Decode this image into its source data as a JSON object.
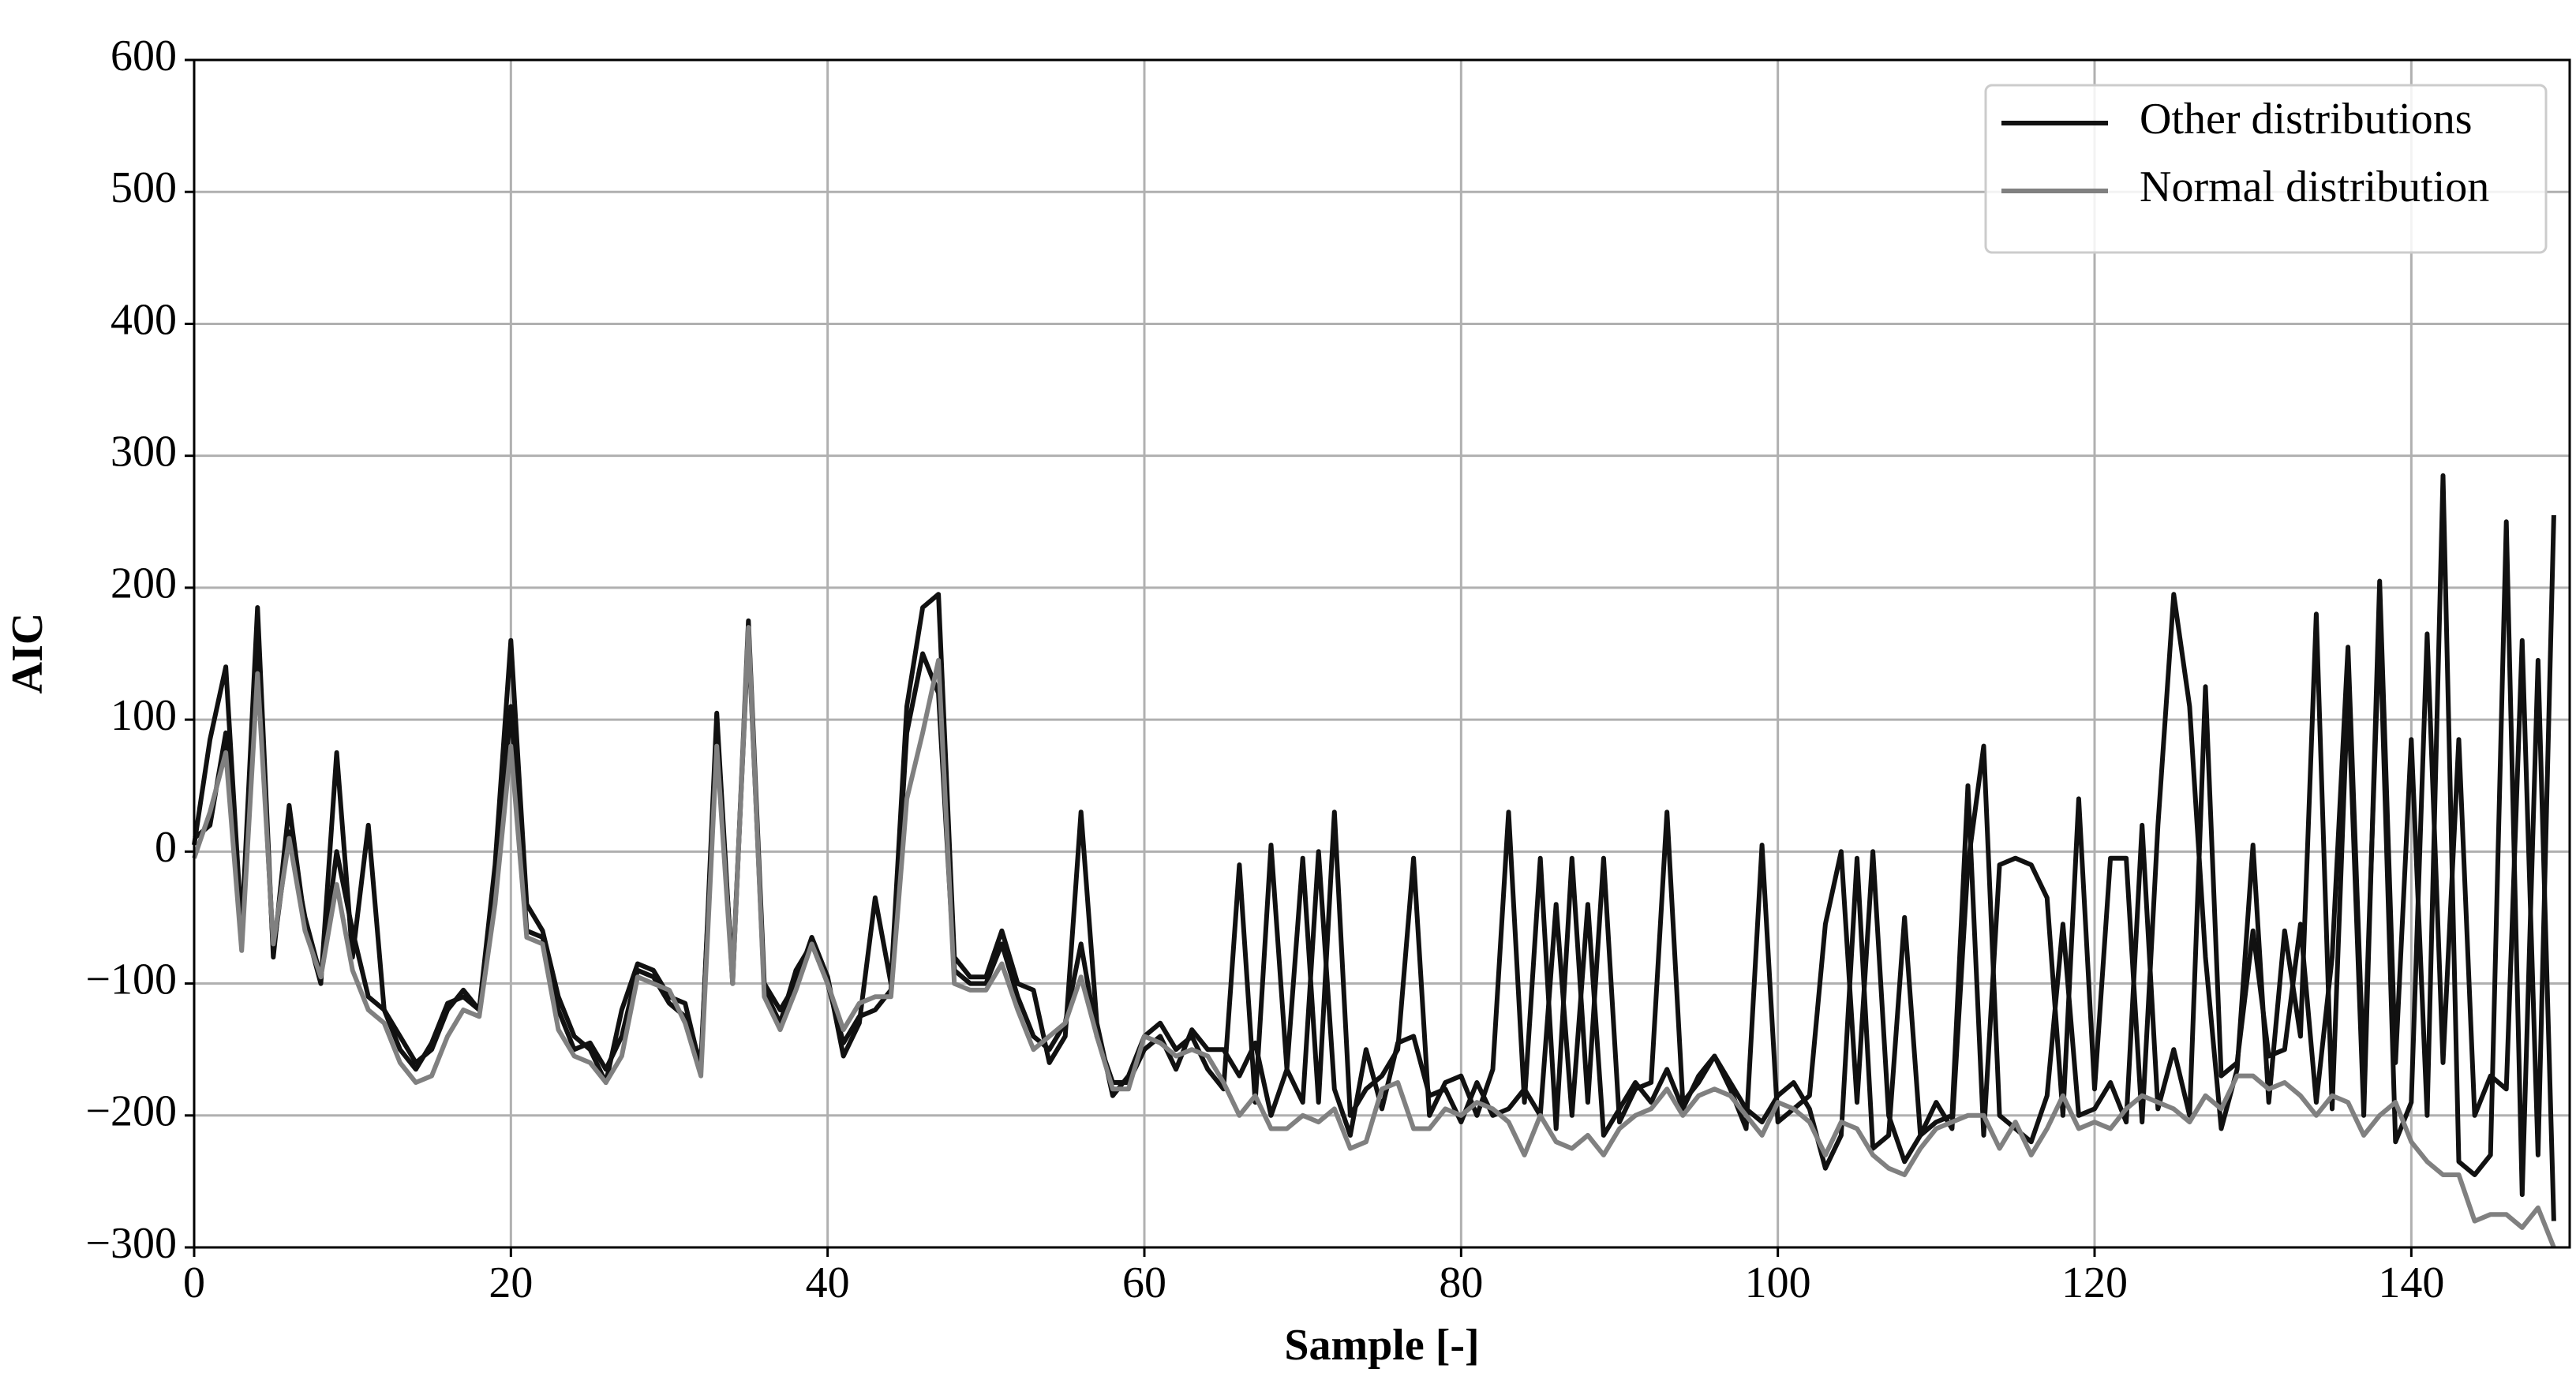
{
  "chart_data": {
    "type": "line",
    "xlabel": "Sample [-]",
    "ylabel": "AIC",
    "x": [
      0,
      1,
      2,
      3,
      4,
      5,
      6,
      7,
      8,
      9,
      10,
      11,
      12,
      13,
      14,
      15,
      16,
      17,
      18,
      19,
      20,
      21,
      22,
      23,
      24,
      25,
      26,
      27,
      28,
      29,
      30,
      31,
      32,
      33,
      34,
      35,
      36,
      37,
      38,
      39,
      40,
      41,
      42,
      43,
      44,
      45,
      46,
      47,
      48,
      49,
      50,
      51,
      52,
      53,
      54,
      55,
      56,
      57,
      58,
      59,
      60,
      61,
      62,
      63,
      64,
      65,
      66,
      67,
      68,
      69,
      70,
      71,
      72,
      73,
      74,
      75,
      76,
      77,
      78,
      79,
      80,
      81,
      82,
      83,
      84,
      85,
      86,
      87,
      88,
      89,
      90,
      91,
      92,
      93,
      94,
      95,
      96,
      97,
      98,
      99,
      100,
      101,
      102,
      103,
      104,
      105,
      106,
      107,
      108,
      109,
      110,
      111,
      112,
      113,
      114,
      115,
      116,
      117,
      118,
      119,
      120,
      121,
      122,
      123,
      124,
      125,
      126,
      127,
      128,
      129,
      130,
      131,
      132,
      133,
      134,
      135,
      136,
      137,
      138,
      139,
      140,
      141,
      142,
      143,
      144,
      145,
      146,
      147,
      148,
      149
    ],
    "series": [
      {
        "name": "Other distributions",
        "color": "#111111",
        "values": [
          5,
          85,
          140,
          -60,
          185,
          -80,
          35,
          -55,
          -100,
          75,
          -80,
          20,
          -120,
          -150,
          -165,
          -145,
          -115,
          -110,
          -120,
          -10,
          160,
          -40,
          -60,
          -110,
          -140,
          -150,
          -175,
          -120,
          -85,
          -90,
          -110,
          -115,
          -165,
          105,
          -100,
          175,
          -100,
          -120,
          -100,
          -65,
          -95,
          -155,
          -130,
          -35,
          -100,
          110,
          185,
          195,
          -80,
          -95,
          -95,
          -60,
          -100,
          -105,
          -160,
          -140,
          30,
          -130,
          -185,
          -170,
          -140,
          -130,
          -150,
          -140,
          -165,
          -180,
          -10,
          -190,
          5,
          -165,
          -5,
          -190,
          30,
          -200,
          -180,
          -170,
          -150,
          -5,
          -200,
          -175,
          -170,
          -200,
          -165,
          30,
          -190,
          -5,
          -210,
          -5,
          -190,
          -5,
          -205,
          -180,
          -175,
          30,
          -190,
          -175,
          -155,
          -180,
          -210,
          5,
          -205,
          -195,
          -185,
          -55,
          0,
          -190,
          0,
          -200,
          -235,
          -215,
          -205,
          -200,
          50,
          -215,
          -10,
          -5,
          -10,
          -35,
          -200,
          40,
          -180,
          -5,
          -5,
          -205,
          20,
          195,
          110,
          -80,
          -210,
          -165,
          5,
          -190,
          -60,
          -140,
          180,
          -195,
          125,
          -200,
          205,
          -160,
          85,
          -200,
          285,
          -235,
          -245,
          -230,
          250,
          -260,
          145,
          -280
        ]
      },
      {
        "name": "Other distributions",
        "color": "#111111",
        "values": [
          10,
          20,
          90,
          -70,
          150,
          -75,
          15,
          -50,
          -95,
          0,
          -60,
          -110,
          -120,
          -140,
          -160,
          -150,
          -120,
          -105,
          -120,
          -30,
          110,
          -60,
          -65,
          -120,
          -150,
          -145,
          -165,
          -140,
          -90,
          -95,
          -115,
          -125,
          -160,
          90,
          -95,
          165,
          -105,
          -130,
          -90,
          -70,
          -100,
          -145,
          -125,
          -120,
          -105,
          90,
          150,
          120,
          -90,
          -100,
          -100,
          -70,
          -110,
          -140,
          -150,
          -130,
          -70,
          -140,
          -175,
          -175,
          -150,
          -140,
          -165,
          -135,
          -150,
          -150,
          -170,
          -145,
          -200,
          -165,
          -190,
          0,
          -180,
          -215,
          -150,
          -195,
          -145,
          -140,
          -185,
          -180,
          -205,
          -175,
          -200,
          -195,
          -180,
          -200,
          -40,
          -200,
          -40,
          -215,
          -195,
          -175,
          -190,
          -165,
          -195,
          -170,
          -155,
          -175,
          -195,
          -205,
          -185,
          -175,
          -195,
          -240,
          -215,
          -5,
          -225,
          -215,
          -50,
          -215,
          -190,
          -210,
          -10,
          80,
          -200,
          -210,
          -220,
          -185,
          -55,
          -200,
          -195,
          -175,
          -205,
          20,
          -195,
          -150,
          -200,
          125,
          -170,
          -160,
          -60,
          -155,
          -150,
          -55,
          -190,
          -80,
          155,
          -170,
          175,
          -220,
          -190,
          165,
          -160,
          85,
          -200,
          -170,
          -180,
          160,
          -230,
          255
        ]
      },
      {
        "name": "Normal distribution",
        "color": "#808080",
        "values": [
          -5,
          30,
          75,
          -75,
          135,
          -70,
          10,
          -60,
          -95,
          -25,
          -90,
          -120,
          -130,
          -160,
          -175,
          -170,
          -140,
          -120,
          -125,
          -40,
          80,
          -65,
          -70,
          -135,
          -155,
          -160,
          -175,
          -155,
          -95,
          -100,
          -105,
          -130,
          -170,
          80,
          -100,
          170,
          -110,
          -135,
          -105,
          -70,
          -100,
          -135,
          -115,
          -110,
          -110,
          40,
          90,
          145,
          -100,
          -105,
          -105,
          -85,
          -120,
          -150,
          -140,
          -130,
          -95,
          -140,
          -180,
          -180,
          -140,
          -145,
          -155,
          -150,
          -155,
          -175,
          -200,
          -185,
          -210,
          -210,
          -200,
          -205,
          -195,
          -225,
          -220,
          -180,
          -175,
          -210,
          -210,
          -195,
          -200,
          -190,
          -195,
          -205,
          -230,
          -200,
          -220,
          -225,
          -215,
          -230,
          -210,
          -200,
          -195,
          -180,
          -200,
          -185,
          -180,
          -185,
          -200,
          -215,
          -190,
          -195,
          -205,
          -230,
          -205,
          -210,
          -230,
          -240,
          -245,
          -225,
          -210,
          -205,
          -200,
          -200,
          -225,
          -205,
          -230,
          -210,
          -185,
          -210,
          -205,
          -210,
          -195,
          -185,
          -190,
          -195,
          -205,
          -185,
          -195,
          -170,
          -170,
          -180,
          -175,
          -185,
          -200,
          -185,
          -190,
          -215,
          -200,
          -190,
          -220,
          -235,
          -245,
          -245,
          -280,
          -275,
          -275,
          -285,
          -270,
          -300
        ]
      }
    ],
    "xlim": [
      0,
      150
    ],
    "xticks": [
      0,
      20,
      40,
      60,
      80,
      100,
      120,
      140
    ],
    "ylim": [
      -300,
      600
    ],
    "yticks": [
      {
        "value": -300,
        "label": "−300"
      },
      {
        "value": -200,
        "label": "−200"
      },
      {
        "value": -100,
        "label": "−100"
      },
      0,
      100,
      200,
      300,
      400,
      500,
      600
    ],
    "grid": true,
    "legend": "upper right"
  }
}
